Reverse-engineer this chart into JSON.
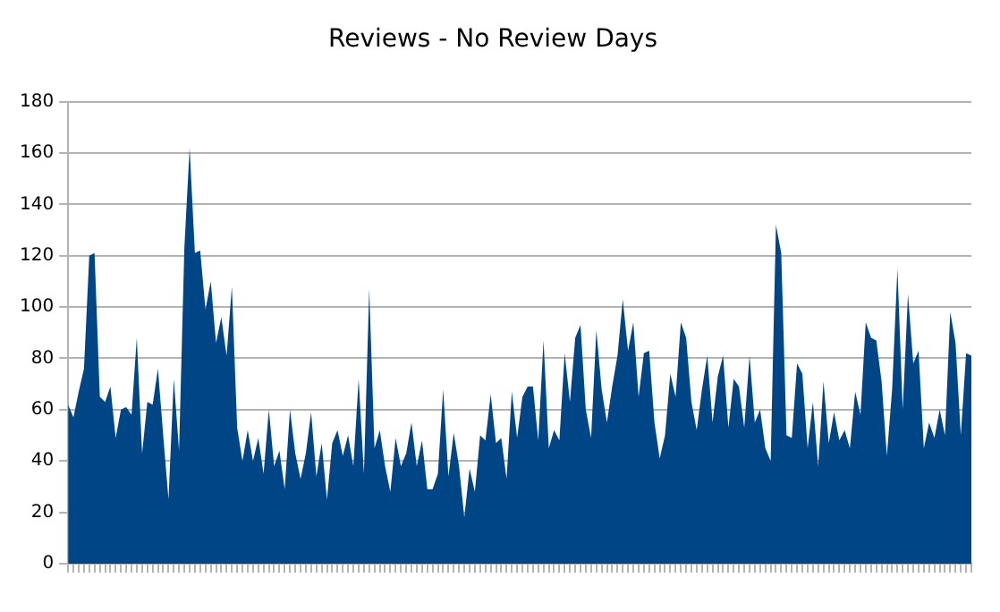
{
  "chart_data": {
    "type": "area",
    "title": "Reviews - No Review Days",
    "categories": [
      null,
      null,
      null,
      null,
      null,
      null,
      null,
      null,
      null,
      null,
      null,
      null,
      null,
      null,
      null,
      null,
      null,
      null,
      null,
      null,
      null,
      null,
      null,
      null,
      null,
      null,
      null,
      null,
      null,
      null,
      null,
      null,
      null,
      null,
      null,
      null,
      null,
      null,
      null,
      null,
      null,
      null,
      null,
      null,
      null,
      null,
      null,
      null,
      null,
      null,
      null,
      null,
      null,
      null,
      null,
      null,
      null,
      null,
      null,
      null,
      null,
      null,
      null,
      null,
      null,
      null,
      null,
      null,
      null,
      null,
      null,
      null,
      null,
      null,
      null,
      null,
      null,
      null,
      null,
      null,
      null,
      null,
      null,
      null,
      null,
      null,
      null,
      null,
      null,
      null,
      null,
      null,
      null,
      null,
      null,
      null,
      null,
      null,
      null,
      null,
      null,
      null,
      null,
      null,
      null,
      null,
      null,
      null,
      null,
      null,
      null,
      null,
      null,
      null,
      null,
      null,
      null,
      null,
      null,
      null,
      null,
      null,
      null,
      null,
      null,
      null,
      null,
      null,
      null,
      null,
      null,
      null,
      null,
      null,
      null,
      null,
      null,
      null,
      null,
      null,
      null,
      null,
      null,
      null,
      null,
      null,
      null,
      null,
      null,
      null,
      null,
      null,
      null,
      null,
      null,
      null,
      null,
      null,
      null,
      null,
      null,
      null,
      null,
      null,
      null,
      null,
      null,
      null,
      null,
      null,
      null,
      null
    ],
    "series": [
      {
        "color": "#004586",
        "values": [
          62,
          57,
          67,
          76,
          120,
          121,
          65,
          63,
          69,
          49,
          60,
          61,
          58,
          88,
          43,
          63,
          62,
          76,
          50,
          25,
          72,
          44,
          123,
          162,
          121,
          122,
          99,
          110,
          86,
          96,
          81,
          108,
          53,
          40,
          52,
          40,
          49,
          35,
          60,
          38,
          44,
          29,
          60,
          43,
          33,
          43,
          59,
          34,
          47,
          25,
          47,
          52,
          42,
          50,
          38,
          72,
          35,
          107,
          45,
          52,
          38,
          28,
          49,
          38,
          43,
          55,
          38,
          48,
          29,
          29,
          35,
          68,
          34,
          51,
          38,
          18,
          37,
          28,
          50,
          48,
          66,
          47,
          49,
          33,
          67,
          49,
          65,
          69,
          69,
          48,
          87,
          45,
          52,
          48,
          82,
          63,
          88,
          93,
          60,
          49,
          91,
          68,
          55,
          69,
          81,
          103,
          83,
          94,
          65,
          82,
          83,
          55,
          41,
          50,
          74,
          65,
          94,
          88,
          63,
          52,
          68,
          81,
          55,
          73,
          81,
          53,
          72,
          69,
          53,
          81,
          55,
          60,
          45,
          40,
          132,
          121,
          50,
          49,
          78,
          74,
          45,
          63,
          38,
          71,
          47,
          59,
          48,
          52,
          45,
          67,
          58,
          94,
          88,
          87,
          71,
          42,
          68,
          115,
          60,
          105,
          78,
          83,
          45,
          55,
          49,
          60,
          50,
          98,
          86,
          50,
          82,
          81
        ]
      }
    ],
    "ylim": [
      0,
      180
    ],
    "yticks": [
      0,
      20,
      40,
      60,
      80,
      100,
      120,
      140,
      160,
      180
    ],
    "grid": "y",
    "tick_labels": "y",
    "legend": false
  }
}
